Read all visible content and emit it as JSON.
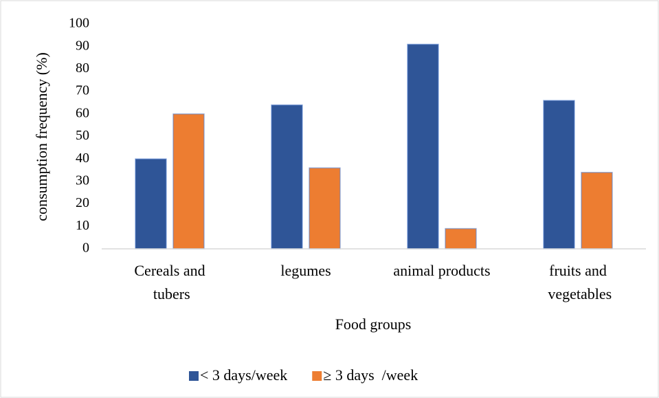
{
  "chart_data": {
    "type": "bar",
    "categories": [
      "Cereals and tubers",
      "legumes",
      "animal products",
      "fruits and vegetables"
    ],
    "series": [
      {
        "name": "< 3 days/week",
        "color": "#2f5597",
        "values": [
          40,
          64,
          91,
          66
        ]
      },
      {
        "name": "≥ 3 days  /week",
        "color": "#ed7d31",
        "values": [
          60,
          36,
          9,
          34
        ]
      }
    ],
    "x_label": "Food groups",
    "y_label": "consumption frequency (%)",
    "ylim": [
      0,
      100
    ],
    "yticks": [
      0,
      10,
      20,
      30,
      40,
      50,
      60,
      70,
      80,
      90,
      100
    ],
    "grid": false,
    "legend": "bottom"
  }
}
